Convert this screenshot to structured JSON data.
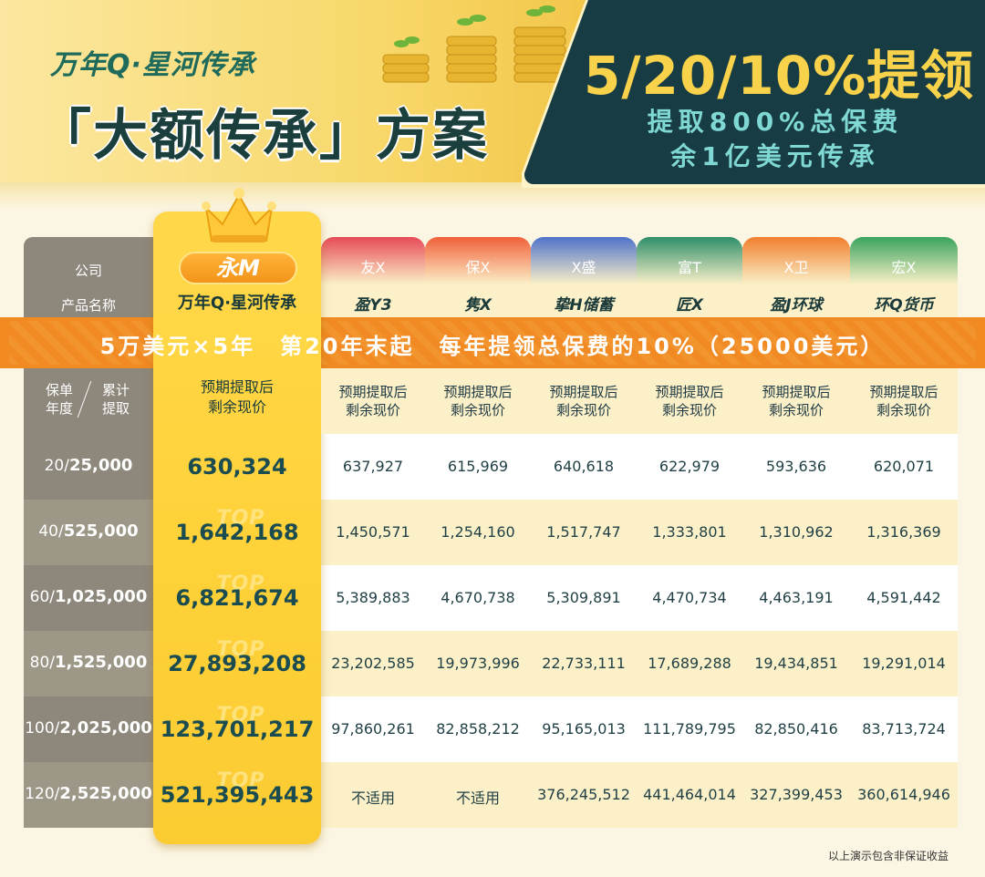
{
  "header": {
    "subtitle": "万年Q·星河传承",
    "title": "「大额传承」方案",
    "promo_main": "5/20/10%提领",
    "promo_line1": "提取800%总保费",
    "promo_line2": "余1亿美元传承"
  },
  "table": {
    "label_company": "公司",
    "label_product": "产品名称",
    "label_year": "保单\n年度",
    "label_cumulative": "累计\n提取",
    "featured": {
      "brand": "永M",
      "product": "万年Q·星河传承",
      "sub_header": "预期提取后\n剩余现价",
      "top_mark": "TOP"
    },
    "band_text": "5万美元×5年　第20年末起　每年提领总保费的10%（25000美元）",
    "sub_header": "预期提取后\n剩余现价",
    "competitors": [
      {
        "company": "友X",
        "product": "盈Y3",
        "color": "#e64b57"
      },
      {
        "company": "保X",
        "product": "隽X",
        "color": "#f0603a"
      },
      {
        "company": "X盛",
        "product": "挚H储蓄",
        "color": "#4f73c9"
      },
      {
        "company": "富T",
        "product": "匠X",
        "color": "#2f8f6b"
      },
      {
        "company": "X卫",
        "product": "盈J环球",
        "color": "#f07f2e"
      },
      {
        "company": "宏X",
        "product": "环Q货币",
        "color": "#3aa45e"
      }
    ],
    "rows": [
      {
        "year": "20",
        "withdrawn": "25,000",
        "featured": "630,324",
        "values": [
          "637,927",
          "615,969",
          "640,618",
          "622,979",
          "593,636",
          "620,071"
        ]
      },
      {
        "year": "40",
        "withdrawn": "525,000",
        "featured": "1,642,168",
        "values": [
          "1,450,571",
          "1,254,160",
          "1,517,747",
          "1,333,801",
          "1,310,962",
          "1,316,369"
        ]
      },
      {
        "year": "60",
        "withdrawn": "1,025,000",
        "featured": "6,821,674",
        "values": [
          "5,389,883",
          "4,670,738",
          "5,309,891",
          "4,470,734",
          "4,463,191",
          "4,591,442"
        ]
      },
      {
        "year": "80",
        "withdrawn": "1,525,000",
        "featured": "27,893,208",
        "values": [
          "23,202,585",
          "19,973,996",
          "22,733,111",
          "17,689,288",
          "19,434,851",
          "19,291,014"
        ]
      },
      {
        "year": "100",
        "withdrawn": "2,025,000",
        "featured": "123,701,217",
        "values": [
          "97,860,261",
          "82,858,212",
          "95,165,013",
          "111,789,795",
          "82,850,416",
          "83,713,724"
        ]
      },
      {
        "year": "120",
        "withdrawn": "2,525,000",
        "featured": "521,395,443",
        "values": [
          "不适用",
          "不适用",
          "376,245,512",
          "441,464,014",
          "327,399,453",
          "360,614,946"
        ]
      }
    ]
  },
  "footnote": "以上演示包含非保证收益"
}
